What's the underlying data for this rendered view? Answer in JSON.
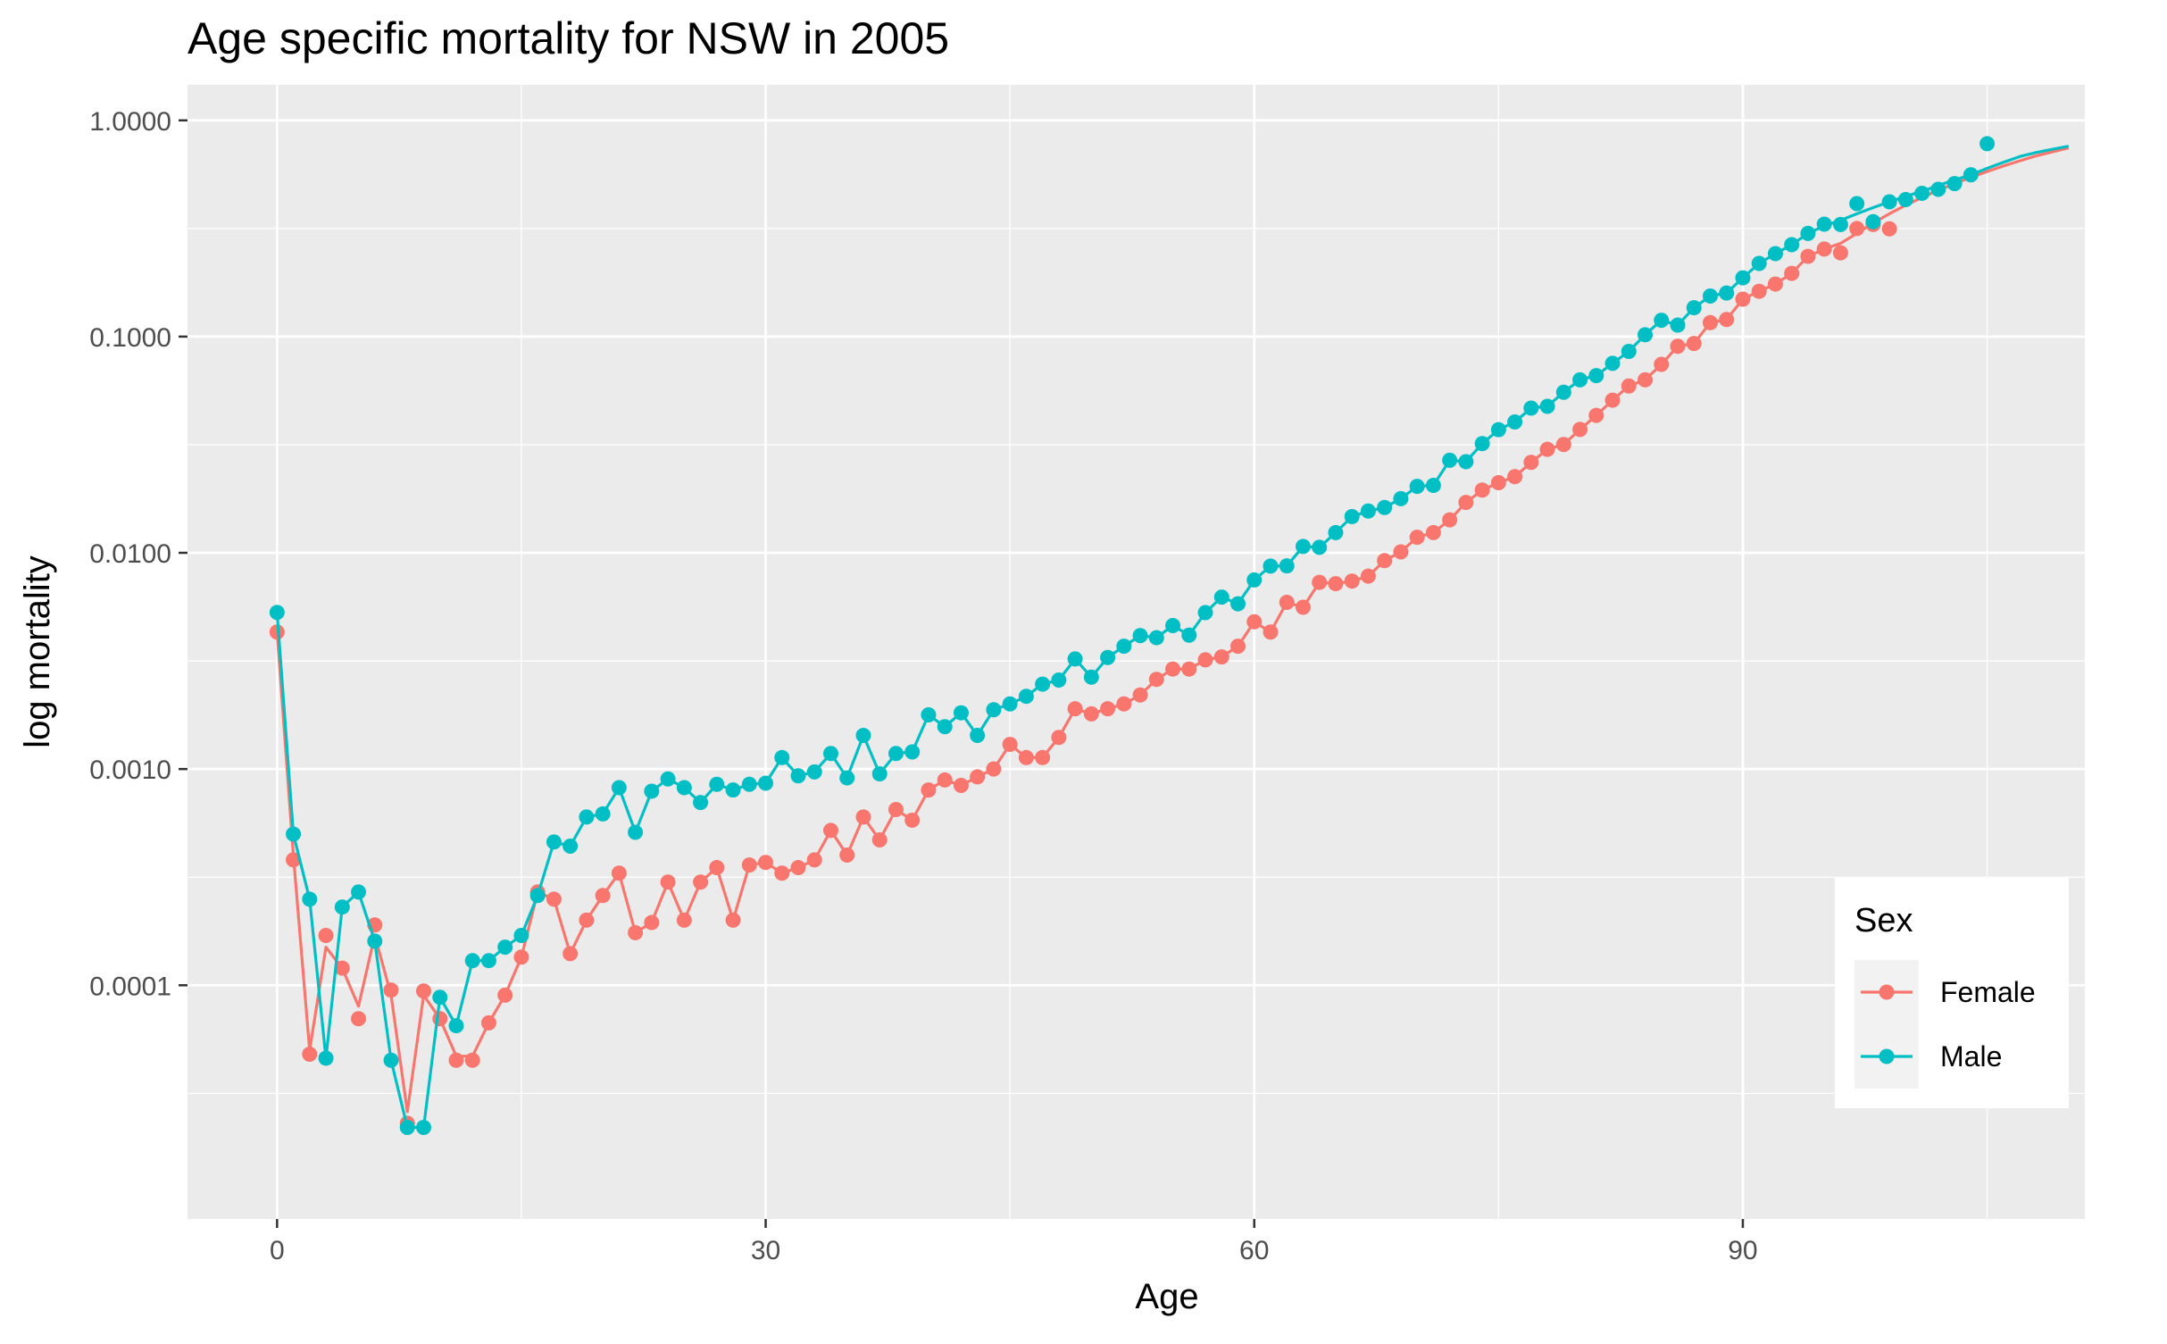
{
  "chart_data": {
    "type": "line",
    "title": "Age specific mortality for NSW in 2005",
    "xlabel": "Age",
    "ylabel": "log mortality",
    "x_scale": "linear",
    "y_scale": "log10",
    "xlim": [
      -5.5,
      111
    ],
    "ylim": [
      8.3e-06,
      1.46
    ],
    "x_ticks": [
      0,
      30,
      60,
      90
    ],
    "x_tick_labels": [
      "0",
      "30",
      "60",
      "90"
    ],
    "y_ticks": [
      0.0001,
      0.001,
      0.01,
      0.1,
      1
    ],
    "y_tick_labels": [
      "0.0001",
      "0.0010",
      "0.0100",
      "0.1000",
      "1.0000"
    ],
    "grid": true,
    "legend": {
      "title": "Sex",
      "position": "bottom-right"
    },
    "colors": {
      "Female": "#F8766D",
      "Male": "#00BFC4",
      "panel": "#EBEBEB",
      "grid": "#FFFFFF"
    },
    "series": [
      {
        "name": "Female",
        "color": "#F8766D",
        "x": [
          0,
          1,
          2,
          3,
          4,
          5,
          6,
          7,
          8,
          9,
          10,
          11,
          12,
          13,
          14,
          15,
          16,
          17,
          18,
          19,
          20,
          21,
          22,
          23,
          24,
          25,
          26,
          27,
          28,
          29,
          30,
          31,
          32,
          33,
          34,
          35,
          36,
          37,
          38,
          39,
          40,
          41,
          42,
          43,
          44,
          45,
          46,
          47,
          48,
          49,
          50,
          51,
          52,
          53,
          54,
          55,
          56,
          57,
          58,
          59,
          60,
          61,
          62,
          63,
          64,
          65,
          66,
          67,
          68,
          69,
          70,
          71,
          72,
          73,
          74,
          75,
          76,
          77,
          78,
          79,
          80,
          81,
          82,
          83,
          84,
          85,
          86,
          87,
          88,
          89,
          90,
          91,
          92,
          93,
          94,
          95,
          96,
          97,
          98,
          99,
          100,
          101,
          102,
          103,
          104,
          105,
          106,
          107,
          108,
          109,
          110
        ],
        "points": [
          0.0043,
          0.00038,
          4.8e-05,
          0.00017,
          0.00012,
          7e-05,
          0.00019,
          9.5e-05,
          2.3e-05,
          9.4e-05,
          7e-05,
          4.5e-05,
          4.5e-05,
          6.7e-05,
          9e-05,
          0.000135,
          0.00027,
          0.00025,
          0.00014,
          0.0002,
          0.00026,
          0.00033,
          0.000175,
          0.000195,
          0.0003,
          0.0002,
          0.0003,
          0.00035,
          0.0002,
          0.00036,
          0.00037,
          0.00033,
          0.00035,
          0.00038,
          0.00052,
          0.0004,
          0.0006,
          0.00047,
          0.00065,
          0.00058,
          0.0008,
          0.00089,
          0.00084,
          0.00092,
          0.001,
          0.0013,
          0.00113,
          0.00113,
          0.0014,
          0.0019,
          0.0018,
          0.0019,
          0.002,
          0.0022,
          0.0026,
          0.0029,
          0.0029,
          0.0032,
          0.0033,
          0.0037,
          0.0048,
          0.0043,
          0.0059,
          0.0056,
          0.0073,
          0.0072,
          0.0074,
          0.0078,
          0.0092,
          0.0101,
          0.0118,
          0.0124,
          0.0142,
          0.0171,
          0.0195,
          0.0211,
          0.0225,
          0.0262,
          0.0301,
          0.0317,
          0.0372,
          0.0432,
          0.0508,
          0.0591,
          0.0631,
          0.0744,
          0.0902,
          0.0929,
          0.116,
          0.12,
          0.149,
          0.162,
          0.175,
          0.196,
          0.235,
          0.254,
          0.244,
          0.316,
          0.33,
          0.315
        ],
        "fitted": [
          0.0043,
          0.0004,
          5e-05,
          0.00015,
          0.00012,
          8e-05,
          0.00017,
          9e-05,
          2.6e-05,
          9e-05,
          7e-05,
          4.7e-05,
          4.7e-05,
          6.7e-05,
          9e-05,
          0.000135,
          0.00027,
          0.00025,
          0.00014,
          0.0002,
          0.00026,
          0.00033,
          0.000175,
          0.000195,
          0.0003,
          0.0002,
          0.0003,
          0.00035,
          0.0002,
          0.00036,
          0.00037,
          0.00033,
          0.00035,
          0.00038,
          0.00052,
          0.0004,
          0.0006,
          0.00047,
          0.00065,
          0.00058,
          0.0008,
          0.00089,
          0.00084,
          0.00092,
          0.001,
          0.0013,
          0.00113,
          0.00113,
          0.0014,
          0.0019,
          0.0018,
          0.0019,
          0.002,
          0.0022,
          0.0026,
          0.0029,
          0.0029,
          0.0032,
          0.0033,
          0.0037,
          0.0048,
          0.0043,
          0.0059,
          0.0056,
          0.0073,
          0.0072,
          0.0074,
          0.0078,
          0.0092,
          0.0101,
          0.0118,
          0.0124,
          0.0142,
          0.0171,
          0.0195,
          0.0211,
          0.0225,
          0.0262,
          0.0301,
          0.0317,
          0.0372,
          0.0432,
          0.0508,
          0.0591,
          0.0631,
          0.0744,
          0.0902,
          0.0929,
          0.116,
          0.12,
          0.149,
          0.162,
          0.175,
          0.196,
          0.235,
          0.254,
          0.27,
          0.3,
          0.335,
          0.37,
          0.405,
          0.44,
          0.475,
          0.51,
          0.545,
          0.58,
          0.615,
          0.65,
          0.685,
          0.715,
          0.745
        ]
      },
      {
        "name": "Male",
        "color": "#00BFC4",
        "x": [
          0,
          1,
          2,
          3,
          4,
          5,
          6,
          7,
          8,
          9,
          10,
          11,
          12,
          13,
          14,
          15,
          16,
          17,
          18,
          19,
          20,
          21,
          22,
          23,
          24,
          25,
          26,
          27,
          28,
          29,
          30,
          31,
          32,
          33,
          34,
          35,
          36,
          37,
          38,
          39,
          40,
          41,
          42,
          43,
          44,
          45,
          46,
          47,
          48,
          49,
          50,
          51,
          52,
          53,
          54,
          55,
          56,
          57,
          58,
          59,
          60,
          61,
          62,
          63,
          64,
          65,
          66,
          67,
          68,
          69,
          70,
          71,
          72,
          73,
          74,
          75,
          76,
          77,
          78,
          79,
          80,
          81,
          82,
          83,
          84,
          85,
          86,
          87,
          88,
          89,
          90,
          91,
          92,
          93,
          94,
          95,
          96,
          97,
          98,
          99,
          100,
          101,
          102,
          103,
          104,
          105,
          106,
          107,
          108,
          109,
          110
        ],
        "points": [
          0.0053,
          0.0005,
          0.00025,
          4.6e-05,
          0.00023,
          0.00027,
          0.00016,
          4.5e-05,
          2.2e-05,
          2.2e-05,
          8.8e-05,
          6.5e-05,
          0.00013,
          0.00013,
          0.00015,
          0.00017,
          0.00026,
          0.00046,
          0.00044,
          0.0006,
          0.00062,
          0.00082,
          0.00051,
          0.00079,
          0.0009,
          0.00082,
          0.0007,
          0.00085,
          0.0008,
          0.00085,
          0.00086,
          0.00113,
          0.00093,
          0.00097,
          0.00118,
          0.00091,
          0.00143,
          0.00095,
          0.00118,
          0.0012,
          0.00178,
          0.00157,
          0.00182,
          0.00143,
          0.00188,
          0.002,
          0.00217,
          0.00247,
          0.00258,
          0.00323,
          0.00266,
          0.00328,
          0.0037,
          0.00414,
          0.00405,
          0.00461,
          0.00416,
          0.00529,
          0.00624,
          0.00581,
          0.00749,
          0.00868,
          0.0087,
          0.0107,
          0.0106,
          0.0124,
          0.0147,
          0.0156,
          0.0162,
          0.0178,
          0.0203,
          0.0205,
          0.0268,
          0.0264,
          0.032,
          0.0371,
          0.0403,
          0.0467,
          0.0476,
          0.0553,
          0.0631,
          0.066,
          0.0752,
          0.0854,
          0.102,
          0.119,
          0.113,
          0.136,
          0.154,
          0.159,
          0.187,
          0.218,
          0.242,
          0.266,
          0.3,
          0.331,
          0.33,
          0.412,
          0.34,
          0.42,
          0.43,
          0.46,
          0.48,
          0.51,
          0.56,
          0.78
        ],
        "fitted": [
          0.0053,
          0.0005,
          0.00025,
          4.6e-05,
          0.00023,
          0.00027,
          0.00016,
          4.5e-05,
          2.2e-05,
          2.2e-05,
          8.8e-05,
          6.5e-05,
          0.00013,
          0.00013,
          0.00015,
          0.00017,
          0.00026,
          0.00046,
          0.00044,
          0.0006,
          0.00062,
          0.00082,
          0.00051,
          0.00079,
          0.0009,
          0.00082,
          0.0007,
          0.00085,
          0.0008,
          0.00085,
          0.00086,
          0.00113,
          0.00093,
          0.00097,
          0.00118,
          0.00091,
          0.00143,
          0.00095,
          0.00118,
          0.0012,
          0.00178,
          0.00157,
          0.00182,
          0.00143,
          0.00188,
          0.002,
          0.00217,
          0.00247,
          0.00258,
          0.00323,
          0.00266,
          0.00328,
          0.0037,
          0.00414,
          0.00405,
          0.00461,
          0.00416,
          0.00529,
          0.00624,
          0.00581,
          0.00749,
          0.00868,
          0.0087,
          0.0107,
          0.0106,
          0.0124,
          0.0147,
          0.0156,
          0.0162,
          0.0178,
          0.0203,
          0.0205,
          0.0268,
          0.0264,
          0.032,
          0.0371,
          0.0403,
          0.0467,
          0.0476,
          0.0553,
          0.0631,
          0.066,
          0.0752,
          0.0854,
          0.102,
          0.119,
          0.113,
          0.136,
          0.154,
          0.159,
          0.187,
          0.218,
          0.242,
          0.266,
          0.3,
          0.325,
          0.345,
          0.37,
          0.395,
          0.42,
          0.445,
          0.47,
          0.5,
          0.53,
          0.56,
          0.6,
          0.64,
          0.68,
          0.71,
          0.735,
          0.76
        ]
      }
    ]
  }
}
